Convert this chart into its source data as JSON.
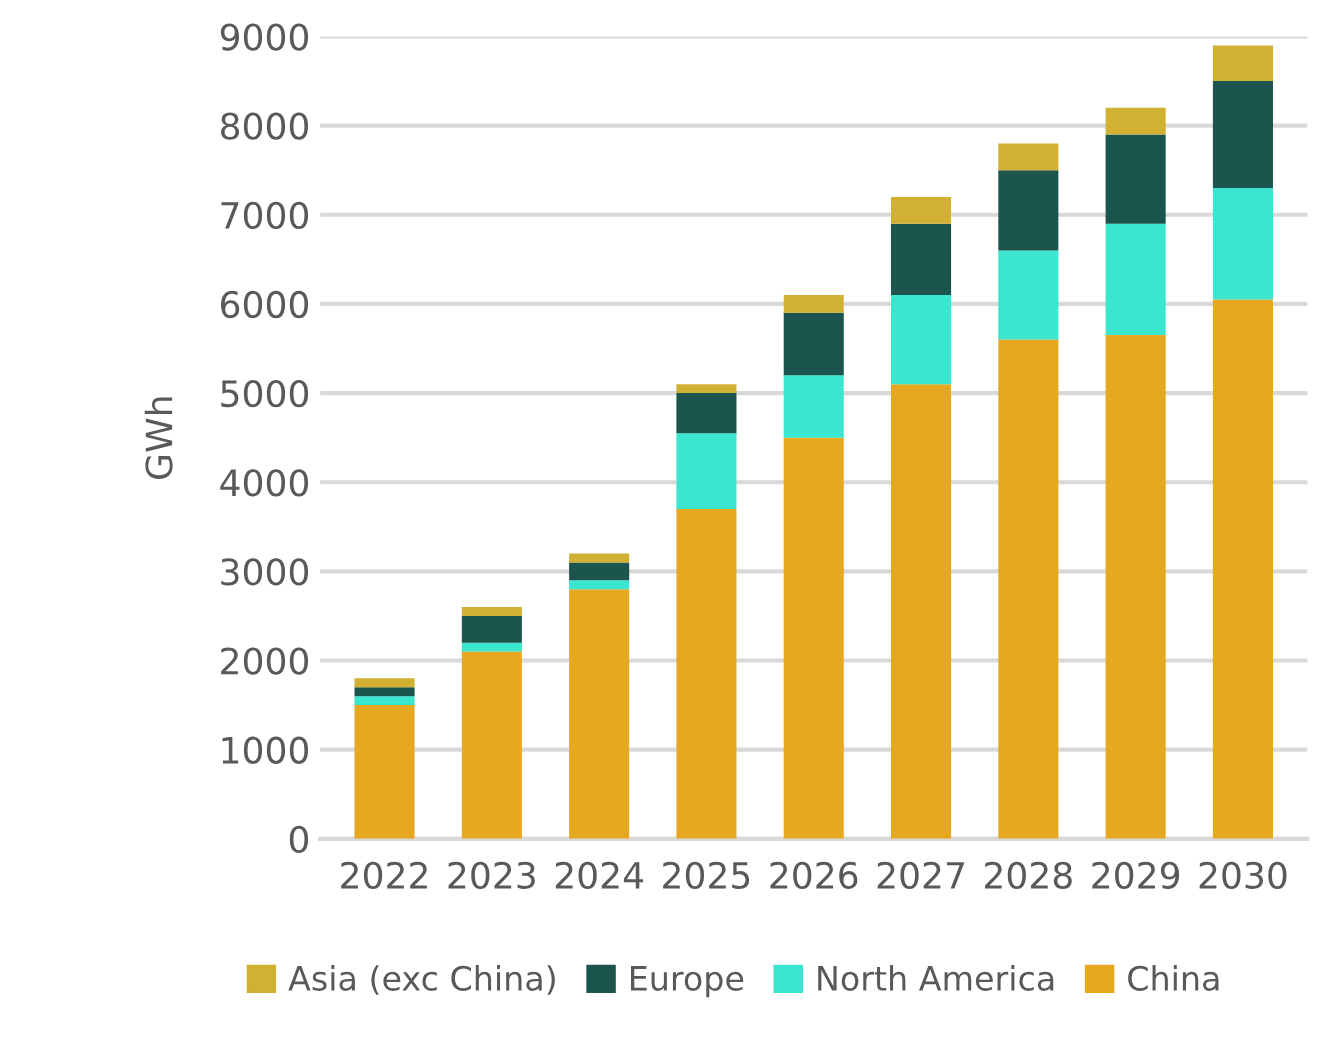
{
  "chart_data": {
    "type": "bar",
    "stacked": true,
    "ylabel": "GWh",
    "categories": [
      "2022",
      "2023",
      "2024",
      "2025",
      "2026",
      "2027",
      "2028",
      "2029",
      "2030"
    ],
    "series": [
      {
        "name": "China",
        "color": "#e6a820",
        "values": [
          1500,
          2100,
          2800,
          3700,
          4500,
          5100,
          5600,
          5650,
          6050
        ]
      },
      {
        "name": "North America",
        "color": "#3ae6cf",
        "values": [
          100,
          100,
          100,
          850,
          700,
          1000,
          1000,
          1250,
          1250
        ]
      },
      {
        "name": "Europe",
        "color": "#1b554d",
        "values": [
          100,
          300,
          200,
          450,
          700,
          800,
          900,
          1000,
          1200
        ]
      },
      {
        "name": "Asia (exc China)",
        "color": "#d1b032",
        "values": [
          100,
          100,
          100,
          100,
          200,
          300,
          300,
          300,
          400
        ]
      }
    ],
    "ylim": [
      0,
      9000
    ],
    "yticks": [
      0,
      1000,
      2000,
      3000,
      4000,
      5000,
      6000,
      7000,
      8000,
      9000
    ],
    "grid": "y",
    "legend": "bottom"
  }
}
